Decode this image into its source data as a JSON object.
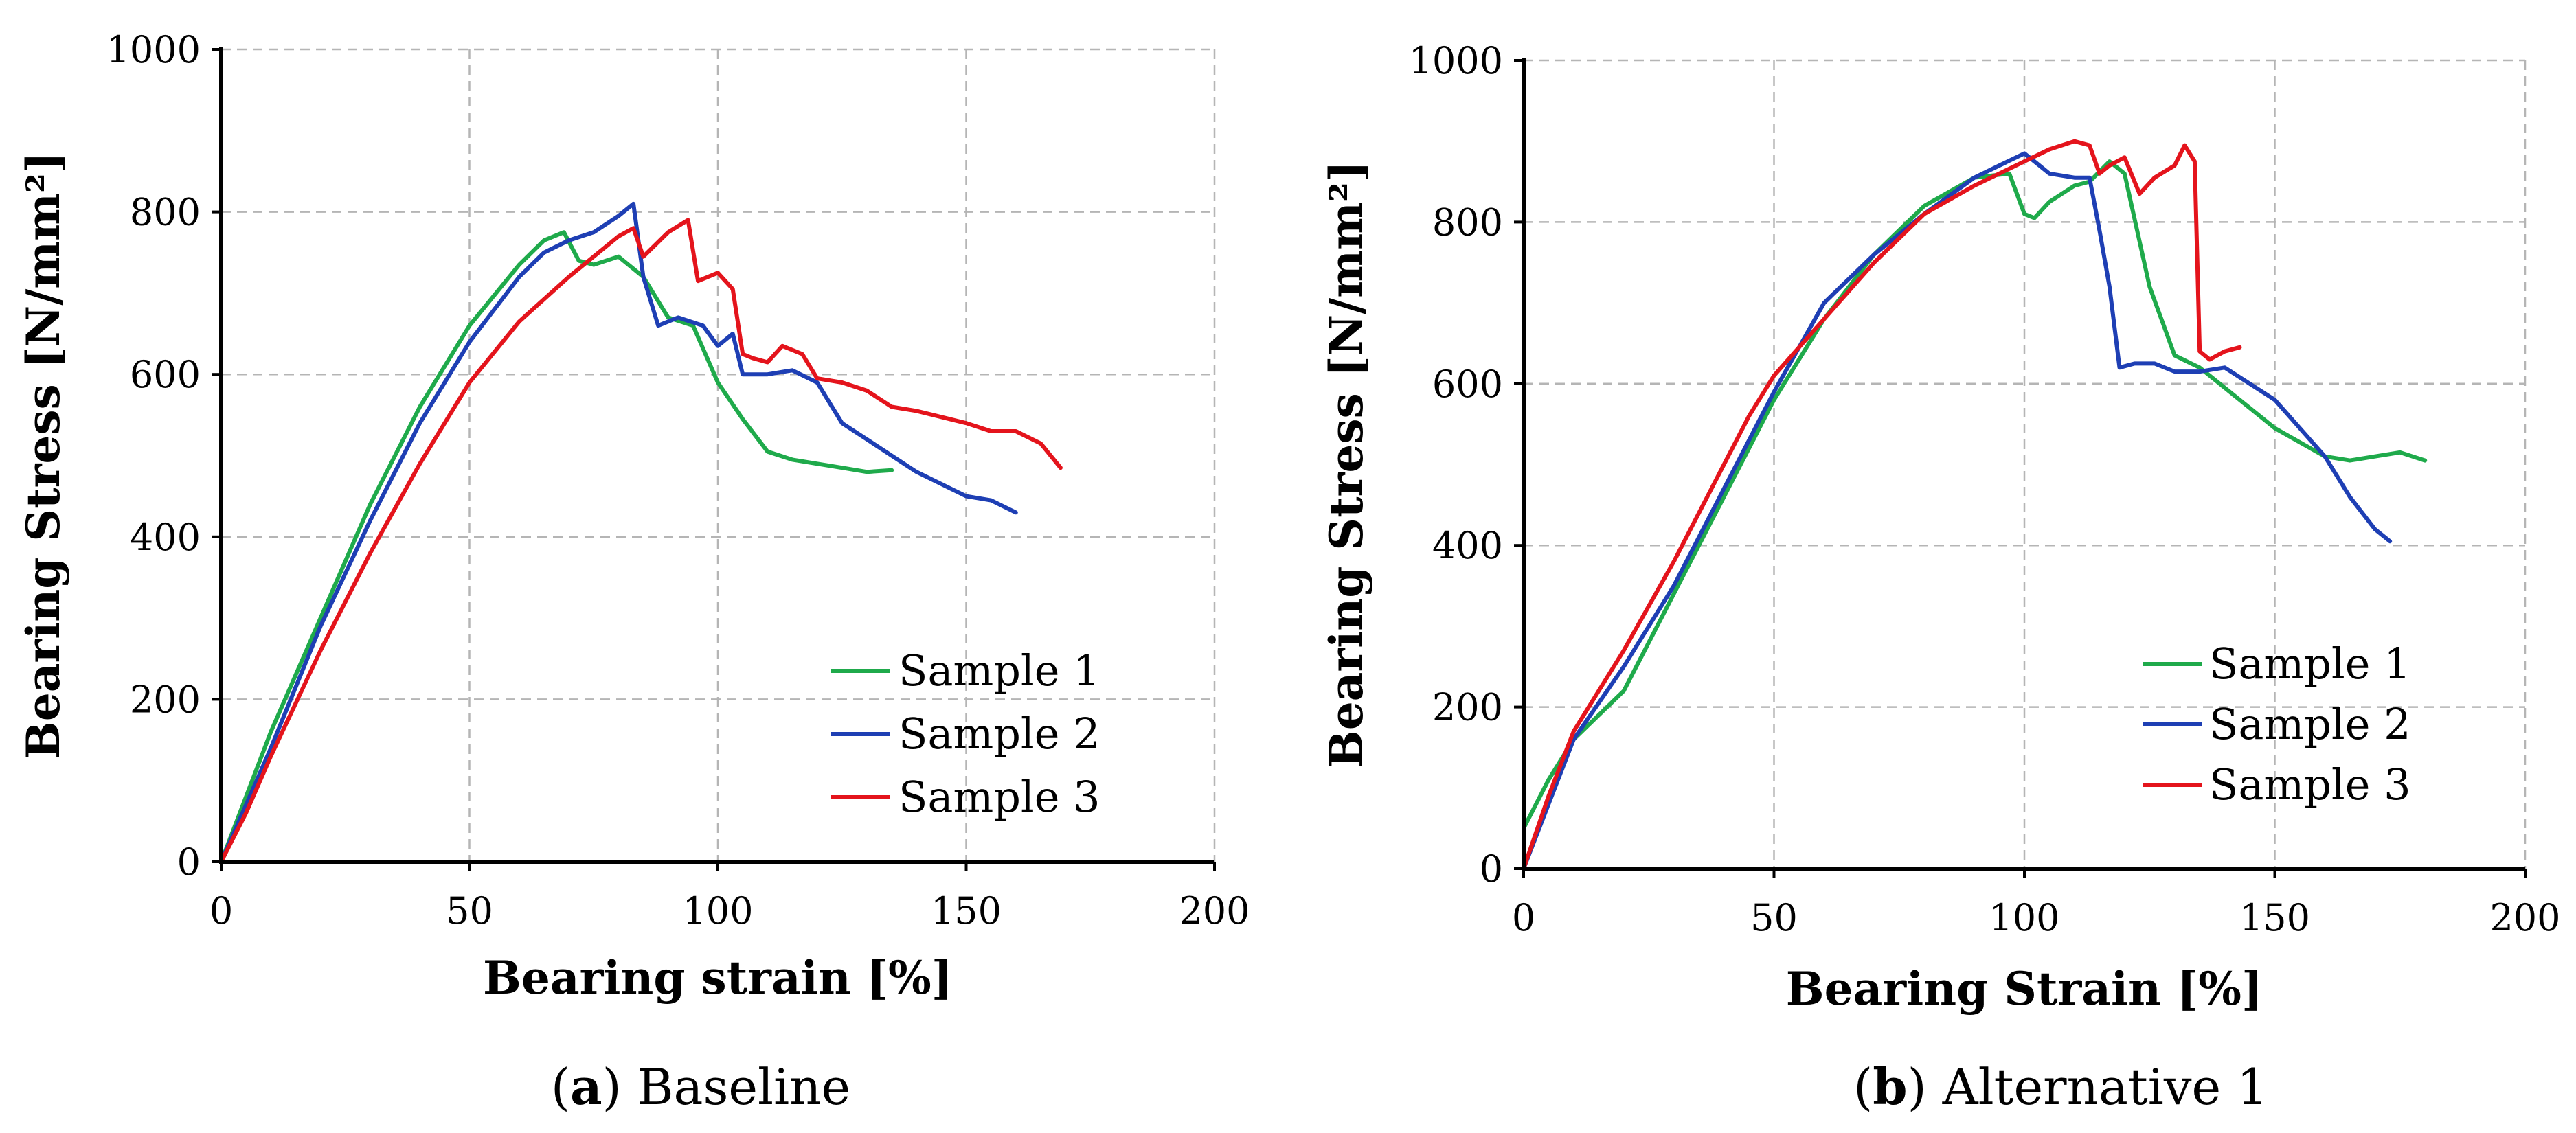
{
  "figure": {
    "subfigures": [
      {
        "letter": "a",
        "caption": "Baseline"
      },
      {
        "letter": "b",
        "caption": "Alternative 1"
      }
    ]
  },
  "chart_data": [
    {
      "type": "line",
      "title": "",
      "caption": "(a) Baseline",
      "xlabel": "Bearing strain [%]",
      "ylabel": "Bearing Stress [N/mm²]",
      "xlim": [
        0,
        200
      ],
      "ylim": [
        0,
        1000
      ],
      "xticks": [
        0,
        50,
        100,
        150,
        200
      ],
      "yticks": [
        0,
        200,
        400,
        600,
        800,
        1000
      ],
      "grid": true,
      "legend": "lower-right",
      "series": [
        {
          "name": "Sample 1",
          "color": "#1faa4b",
          "x": [
            0,
            5,
            10,
            20,
            30,
            40,
            50,
            60,
            65,
            69,
            72,
            75,
            80,
            85,
            90,
            95,
            100,
            105,
            110,
            115,
            120,
            125,
            130,
            135
          ],
          "y": [
            0,
            80,
            160,
            300,
            440,
            560,
            660,
            735,
            765,
            775,
            740,
            735,
            745,
            720,
            670,
            660,
            590,
            545,
            505,
            495,
            490,
            485,
            480,
            482
          ]
        },
        {
          "name": "Sample 2",
          "color": "#1e3fb4",
          "x": [
            0,
            5,
            10,
            20,
            30,
            40,
            50,
            60,
            65,
            70,
            75,
            80,
            83,
            85,
            88,
            92,
            97,
            100,
            103,
            105,
            110,
            115,
            120,
            125,
            130,
            140,
            150,
            155,
            160
          ],
          "y": [
            0,
            70,
            140,
            290,
            420,
            540,
            640,
            720,
            750,
            765,
            775,
            795,
            810,
            720,
            660,
            670,
            660,
            635,
            650,
            600,
            600,
            605,
            590,
            540,
            520,
            480,
            450,
            445,
            430
          ]
        },
        {
          "name": "Sample 3",
          "color": "#e4141c",
          "x": [
            0,
            5,
            10,
            20,
            30,
            40,
            50,
            60,
            70,
            80,
            83,
            85,
            90,
            94,
            96,
            100,
            103,
            105,
            107,
            110,
            113,
            117,
            120,
            125,
            130,
            135,
            140,
            150,
            155,
            160,
            165,
            169
          ],
          "y": [
            0,
            60,
            130,
            260,
            380,
            490,
            590,
            665,
            720,
            770,
            780,
            745,
            775,
            790,
            715,
            725,
            705,
            625,
            620,
            615,
            635,
            625,
            595,
            590,
            580,
            560,
            555,
            540,
            530,
            530,
            515,
            485
          ]
        }
      ]
    },
    {
      "type": "line",
      "title": "",
      "caption": "(b) Alternative 1",
      "xlabel": "Bearing Strain [%]",
      "ylabel": "Bearing Stress [N/mm²]",
      "xlim": [
        0,
        200
      ],
      "ylim": [
        0,
        1000
      ],
      "xticks": [
        0,
        50,
        100,
        150,
        200
      ],
      "yticks": [
        0,
        200,
        400,
        600,
        800,
        1000
      ],
      "grid": true,
      "legend": "lower-right",
      "series": [
        {
          "name": "Sample 1",
          "color": "#1faa4b",
          "x": [
            0,
            5,
            10,
            20,
            30,
            40,
            50,
            60,
            70,
            80,
            90,
            97,
            100,
            102,
            105,
            110,
            113,
            117,
            120,
            125,
            130,
            135,
            140,
            150,
            160,
            165,
            170,
            175,
            180
          ],
          "y": [
            50,
            110,
            160,
            220,
            340,
            460,
            580,
            680,
            760,
            820,
            855,
            860,
            810,
            805,
            825,
            845,
            850,
            875,
            860,
            720,
            635,
            620,
            595,
            545,
            510,
            505,
            510,
            515,
            505
          ]
        },
        {
          "name": "Sample 2",
          "color": "#1e3fb4",
          "x": [
            0,
            5,
            10,
            20,
            30,
            40,
            50,
            60,
            70,
            80,
            90,
            95,
            100,
            103,
            105,
            110,
            113,
            115,
            117,
            119,
            122,
            126,
            130,
            135,
            140,
            150,
            160,
            165,
            170,
            173
          ],
          "y": [
            0,
            80,
            160,
            250,
            350,
            470,
            590,
            700,
            760,
            810,
            855,
            870,
            885,
            870,
            860,
            855,
            855,
            790,
            720,
            620,
            625,
            625,
            615,
            615,
            620,
            580,
            510,
            460,
            420,
            405
          ]
        },
        {
          "name": "Sample 3",
          "color": "#e4141c",
          "x": [
            0,
            5,
            10,
            20,
            30,
            40,
            45,
            50,
            60,
            70,
            80,
            90,
            100,
            105,
            110,
            113,
            115,
            117,
            120,
            123,
            126,
            130,
            132,
            134,
            135,
            137,
            140,
            143
          ],
          "y": [
            0,
            90,
            170,
            270,
            380,
            500,
            560,
            610,
            680,
            750,
            810,
            845,
            875,
            890,
            900,
            895,
            860,
            870,
            880,
            835,
            855,
            870,
            895,
            875,
            640,
            630,
            640,
            645
          ]
        }
      ]
    }
  ]
}
